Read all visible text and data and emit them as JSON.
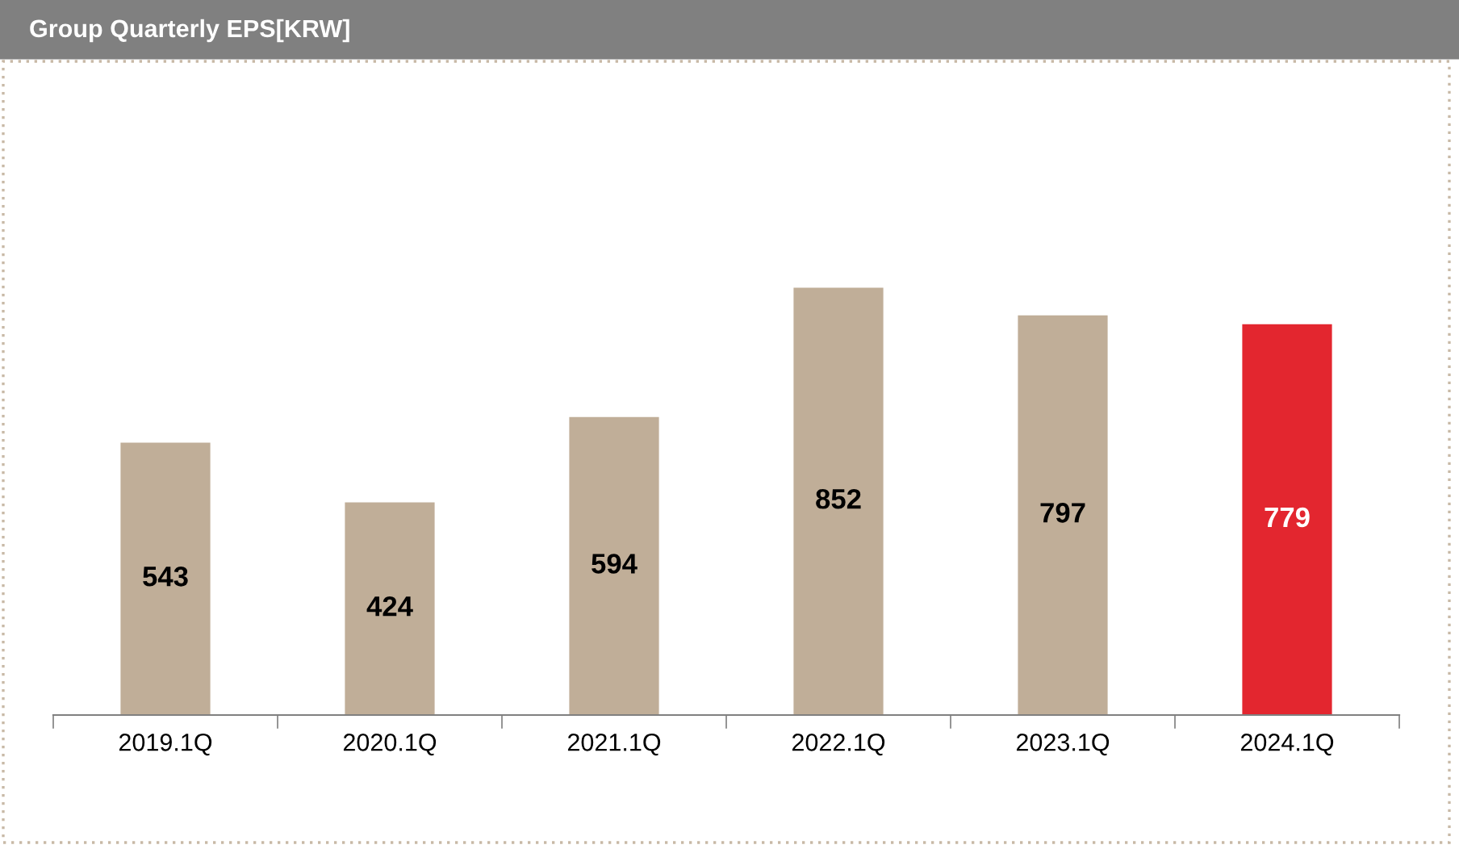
{
  "chart_data": {
    "type": "bar",
    "title": "Group Quarterly EPS[KRW]",
    "categories": [
      "2019.1Q",
      "2020.1Q",
      "2021.1Q",
      "2022.1Q",
      "2023.1Q",
      "2024.1Q"
    ],
    "values": [
      543,
      424,
      594,
      852,
      797,
      779
    ],
    "colors": [
      "#c0ae98",
      "#c0ae98",
      "#c0ae98",
      "#c0ae98",
      "#c0ae98",
      "#e3262f"
    ],
    "data_labels": true,
    "grid": false,
    "legend": false
  }
}
